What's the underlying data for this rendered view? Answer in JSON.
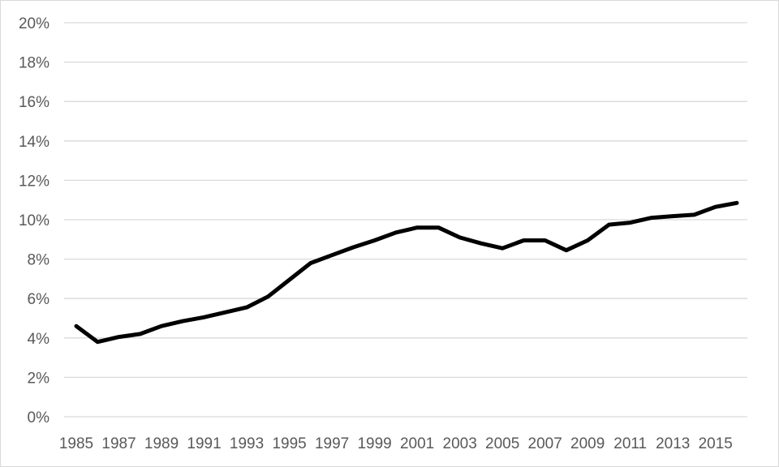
{
  "chart_data": {
    "type": "line",
    "title": "",
    "xlabel": "",
    "ylabel": "",
    "x": [
      1985,
      1986,
      1987,
      1988,
      1989,
      1990,
      1991,
      1992,
      1993,
      1994,
      1995,
      1996,
      1997,
      1998,
      1999,
      2000,
      2001,
      2002,
      2003,
      2004,
      2005,
      2006,
      2007,
      2008,
      2009,
      2010,
      2011,
      2012,
      2013,
      2014,
      2015,
      2016
    ],
    "x_tick_labels": [
      "1985",
      "1987",
      "1989",
      "1991",
      "1993",
      "1995",
      "1997",
      "1999",
      "2001",
      "2003",
      "2005",
      "2007",
      "2009",
      "2011",
      "2013",
      "2015"
    ],
    "y_tick_labels": [
      "0%",
      "2%",
      "4%",
      "6%",
      "8%",
      "10%",
      "12%",
      "14%",
      "16%",
      "18%",
      "20%"
    ],
    "ylim": [
      0,
      20
    ],
    "y_unit": "%",
    "grid": "horizontal",
    "legend": "none",
    "series": [
      {
        "color": "#000000",
        "values": [
          4.6,
          3.8,
          4.05,
          4.2,
          4.6,
          4.85,
          5.05,
          5.3,
          5.55,
          6.1,
          6.95,
          7.8,
          8.2,
          8.6,
          8.95,
          9.35,
          9.6,
          9.6,
          9.1,
          8.8,
          8.55,
          8.95,
          8.95,
          8.45,
          8.95,
          9.75,
          9.85,
          10.1,
          10.18,
          10.25,
          10.65,
          10.85
        ]
      }
    ]
  }
}
